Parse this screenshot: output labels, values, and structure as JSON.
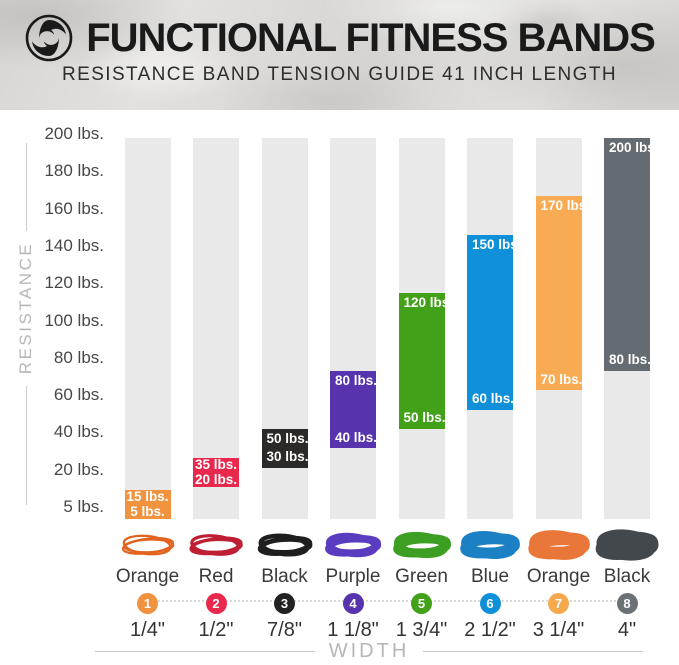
{
  "header": {
    "title": "FUNCTIONAL FITNESS BANDS",
    "subtitle": "RESISTANCE BAND TENSION GUIDE 41 INCH LENGTH",
    "logo_icon": "swirl-logo"
  },
  "chart_data": {
    "type": "bar",
    "title": "FUNCTIONAL FITNESS BANDS — RESISTANCE BAND TENSION GUIDE 41 INCH LENGTH",
    "ylabel": "RESISTANCE",
    "xlabel": "WIDTH",
    "unit": "lbs.",
    "ylim": [
      5,
      200
    ],
    "y_ticks": [
      "200 lbs.",
      "180 lbs.",
      "160 lbs.",
      "140 lbs.",
      "120 lbs.",
      "100 lbs.",
      "80 lbs.",
      "60 lbs.",
      "40 lbs.",
      "20 lbs.",
      "5 lbs."
    ],
    "bands": [
      {
        "name": "Orange",
        "number": "1",
        "width_label": "1/4\"",
        "min_lbs": 5,
        "max_lbs": 15,
        "min_label": "5 lbs.",
        "max_label": "15 lbs.",
        "color": "#f0923e",
        "badge_color": "#f0923e",
        "photo_color": "#e2631f"
      },
      {
        "name": "Red",
        "number": "2",
        "width_label": "1/2\"",
        "min_lbs": 20,
        "max_lbs": 35,
        "min_label": "20 lbs.",
        "max_label": "35 lbs.",
        "color": "#e8294d",
        "badge_color": "#e8294d",
        "photo_color": "#bf1f33"
      },
      {
        "name": "Black",
        "number": "3",
        "width_label": "7/8\"",
        "min_lbs": 30,
        "max_lbs": 50,
        "min_label": "30 lbs.",
        "max_label": "50 lbs.",
        "color": "#2b2a29",
        "badge_color": "#222222",
        "photo_color": "#1f1f1f"
      },
      {
        "name": "Purple",
        "number": "4",
        "width_label": "1 1/8\"",
        "min_lbs": 40,
        "max_lbs": 80,
        "min_label": "40 lbs.",
        "max_label": "80 lbs.",
        "color": "#5734ad",
        "badge_color": "#5734ad",
        "photo_color": "#5a3cc0"
      },
      {
        "name": "Green",
        "number": "5",
        "width_label": "1 3/4\"",
        "min_lbs": 50,
        "max_lbs": 120,
        "min_label": "50 lbs.",
        "max_label": "120 lbs.",
        "color": "#42a118",
        "badge_color": "#42a118",
        "photo_color": "#3c9e23"
      },
      {
        "name": "Blue",
        "number": "6",
        "width_label": "2 1/2\"",
        "min_lbs": 60,
        "max_lbs": 150,
        "min_label": "60 lbs.",
        "max_label": "150 lbs.",
        "color": "#0f90d8",
        "badge_color": "#0f90d8",
        "photo_color": "#1c80c4"
      },
      {
        "name": "Orange",
        "number": "7",
        "width_label": "3 1/4\"",
        "min_lbs": 70,
        "max_lbs": 170,
        "min_label": "70 lbs.",
        "max_label": "170 lbs.",
        "color": "#f8ab52",
        "badge_color": "#f5a94e",
        "photo_color": "#e9773a"
      },
      {
        "name": "Black",
        "number": "8",
        "width_label": "4\"",
        "min_lbs": 80,
        "max_lbs": 200,
        "min_label": "80 lbs.",
        "max_label": "200 lbs.",
        "color": "#656c71",
        "badge_color": "#6b7276",
        "photo_color": "#43484c"
      }
    ]
  }
}
